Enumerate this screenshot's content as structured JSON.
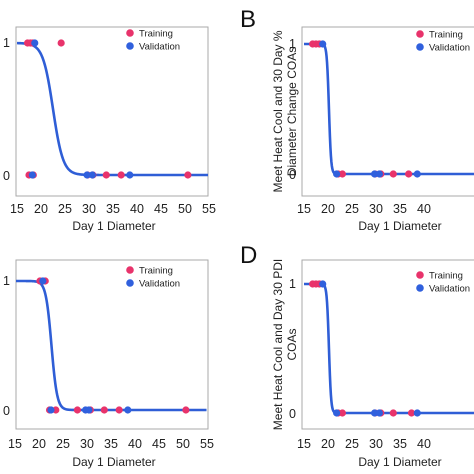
{
  "colors": {
    "training": "#e8336b",
    "validation": "#3060dd",
    "curve": "#2f5ed6",
    "frame": "#a9a9a9"
  },
  "chart_data": [
    {
      "panel": "",
      "type": "line",
      "title": "",
      "xlabel": "Day 1 Diameter",
      "ylabel": "",
      "xlim": [
        15,
        55
      ],
      "ylim": [
        0,
        1
      ],
      "xticks": [
        "15",
        "20",
        "25",
        "30",
        "35",
        "40",
        "45",
        "50",
        "55"
      ],
      "yticks": [
        "0",
        "1"
      ],
      "legend": {
        "position": "top-right",
        "entries": [
          "Training",
          "Validation"
        ]
      },
      "curve": {
        "midpoint": 22.5,
        "steepness": 0.95
      },
      "series": [
        {
          "name": "Training",
          "color": "#e8336b",
          "points": [
            [
              17.2,
              1
            ],
            [
              17.8,
              1
            ],
            [
              18.3,
              1
            ],
            [
              24.2,
              1
            ],
            [
              17.5,
              0
            ],
            [
              18.4,
              0
            ],
            [
              29.7,
              0
            ],
            [
              30.8,
              0
            ],
            [
              33.6,
              0
            ],
            [
              36.7,
              0
            ],
            [
              50.6,
              0
            ]
          ]
        },
        {
          "name": "Validation",
          "color": "#3060dd",
          "points": [
            [
              18.7,
              1
            ],
            [
              18.2,
              0
            ],
            [
              29.6,
              0
            ],
            [
              30.7,
              0
            ],
            [
              38.5,
              0
            ]
          ]
        }
      ]
    },
    {
      "panel": "B",
      "type": "line",
      "title": "",
      "xlabel": "Day 1 Diameter",
      "ylabel": "Meet Heat Cool and 30 Day %\nDiameter Change COAs",
      "xlim": [
        15,
        55
      ],
      "ylim": [
        0,
        1
      ],
      "xticks": [
        "15",
        "20",
        "25",
        "30",
        "35",
        "40"
      ],
      "yticks": [
        "0",
        "1"
      ],
      "legend": {
        "position": "top-right",
        "entries": [
          "Training",
          "Validation"
        ]
      },
      "curve": {
        "midpoint": 20.2,
        "steepness": 4.5
      },
      "series": [
        {
          "name": "Training",
          "color": "#e8336b",
          "points": [
            [
              16.8,
              1
            ],
            [
              17.5,
              1
            ],
            [
              18.2,
              1
            ],
            [
              22.1,
              0
            ],
            [
              23.0,
              0
            ],
            [
              29.8,
              0
            ],
            [
              31.0,
              0
            ],
            [
              33.6,
              0
            ],
            [
              36.8,
              0
            ]
          ]
        },
        {
          "name": "Validation",
          "color": "#3060dd",
          "points": [
            [
              18.9,
              1
            ],
            [
              21.8,
              0
            ],
            [
              29.7,
              0
            ],
            [
              30.7,
              0
            ],
            [
              38.6,
              0
            ]
          ]
        }
      ]
    },
    {
      "panel": "",
      "type": "line",
      "title": "",
      "xlabel": "Day 1 Diameter",
      "ylabel": "",
      "xlim": [
        15,
        55
      ],
      "ylim": [
        0,
        1
      ],
      "xticks": [
        "15",
        "20",
        "25",
        "30",
        "35",
        "40",
        "45",
        "50",
        "55"
      ],
      "yticks": [
        "0",
        "1"
      ],
      "legend": {
        "position": "top-right",
        "entries": [
          "Training",
          "Validation"
        ]
      },
      "curve": {
        "midpoint": 22.6,
        "steepness": 1.7
      },
      "series": [
        {
          "name": "Training",
          "color": "#e8336b",
          "points": [
            [
              20.2,
              1
            ],
            [
              21.3,
              1
            ],
            [
              22.2,
              0
            ],
            [
              23.5,
              0
            ],
            [
              28.0,
              0
            ],
            [
              30.7,
              0
            ],
            [
              33.6,
              0
            ],
            [
              36.7,
              0
            ],
            [
              50.6,
              0
            ]
          ]
        },
        {
          "name": "Validation",
          "color": "#3060dd",
          "points": [
            [
              20.8,
              1
            ],
            [
              22.5,
              0
            ],
            [
              29.7,
              0
            ],
            [
              30.4,
              0
            ],
            [
              38.5,
              0
            ]
          ]
        }
      ]
    },
    {
      "panel": "D",
      "type": "line",
      "title": "",
      "xlabel": "Day 1 Diameter",
      "ylabel": "Meet Heat Cool and Day 30 PDI\nCOAs",
      "xlim": [
        15,
        55
      ],
      "ylim": [
        0,
        1
      ],
      "xticks": [
        "15",
        "20",
        "25",
        "30",
        "35",
        "40"
      ],
      "yticks": [
        "0",
        "1"
      ],
      "legend": {
        "position": "top-right",
        "entries": [
          "Training",
          "Validation"
        ]
      },
      "curve": {
        "midpoint": 20.2,
        "steepness": 4.5
      },
      "series": [
        {
          "name": "Training",
          "color": "#e8336b",
          "points": [
            [
              16.8,
              1
            ],
            [
              17.5,
              1
            ],
            [
              18.2,
              1
            ],
            [
              22.1,
              0
            ],
            [
              23.0,
              0
            ],
            [
              29.8,
              0
            ],
            [
              31.0,
              0
            ],
            [
              33.6,
              0
            ],
            [
              37.4,
              0
            ]
          ]
        },
        {
          "name": "Validation",
          "color": "#3060dd",
          "points": [
            [
              18.9,
              1
            ],
            [
              21.8,
              0
            ],
            [
              29.7,
              0
            ],
            [
              30.7,
              0
            ],
            [
              38.6,
              0
            ]
          ]
        }
      ]
    }
  ]
}
